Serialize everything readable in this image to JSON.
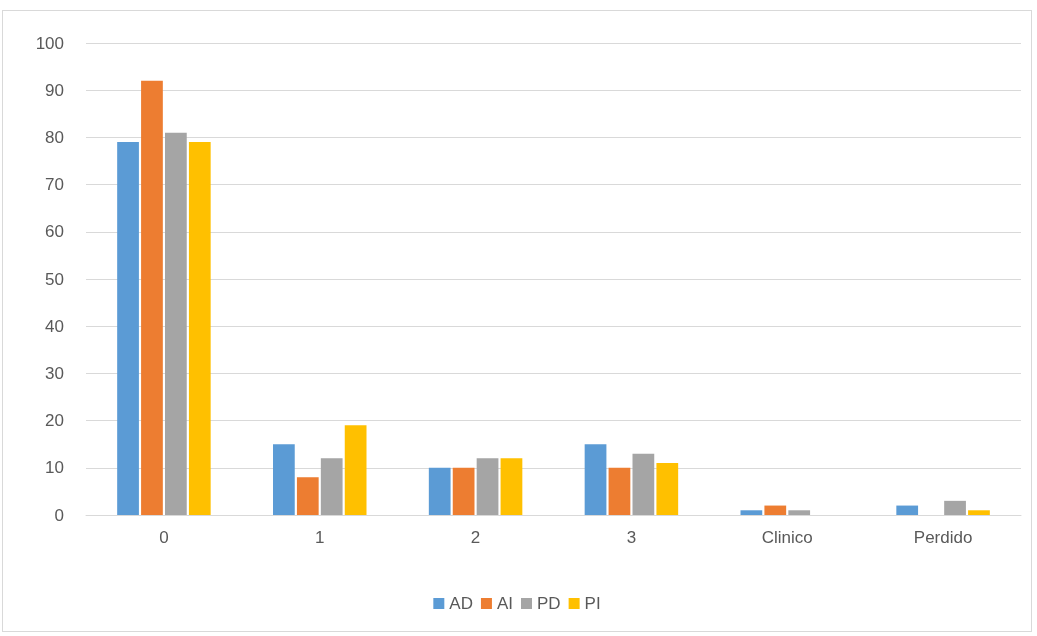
{
  "chart_data": {
    "type": "bar",
    "categories": [
      "0",
      "1",
      "2",
      "3",
      "Clinico",
      "Perdido"
    ],
    "series": [
      {
        "name": "AD",
        "color": "#5b9bd5",
        "values": [
          79,
          15,
          10,
          15,
          1,
          2
        ]
      },
      {
        "name": "AI",
        "color": "#ed7d31",
        "values": [
          92,
          8,
          10,
          10,
          2,
          0
        ]
      },
      {
        "name": "PD",
        "color": "#a5a5a5",
        "values": [
          81,
          12,
          12,
          13,
          1,
          3
        ]
      },
      {
        "name": "PI",
        "color": "#ffc000",
        "values": [
          79,
          19,
          12,
          11,
          0,
          1
        ]
      }
    ],
    "ylim": [
      0,
      100
    ],
    "yticks": [
      0,
      10,
      20,
      30,
      40,
      50,
      60,
      70,
      80,
      90,
      100
    ],
    "grid": "y",
    "legend": "bottom"
  }
}
